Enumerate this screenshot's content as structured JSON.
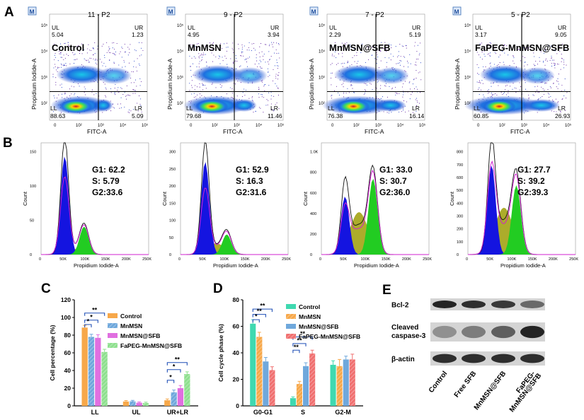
{
  "panel_letters": {
    "a": "A",
    "b": "B",
    "c": "C",
    "d": "D",
    "e": "E"
  },
  "flow_plots": [
    {
      "title": "11 - P2",
      "label": "Control",
      "ul": "5.04",
      "ur": "1.23",
      "ll": "88.63",
      "lr": "5.09"
    },
    {
      "title": "9 - P2",
      "label": "MnMSN",
      "ul": "4.95",
      "ur": "3.94",
      "ll": "79.68",
      "lr": "11.46"
    },
    {
      "title": "7 - P2",
      "label": "MnMSN@SFB",
      "ul": "2.29",
      "ur": "5.19",
      "ll": "76.38",
      "lr": "16.14"
    },
    {
      "title": "5 - P2",
      "label": "FaPEG-MnMSN@SFB",
      "ul": "3.17",
      "ur": "9.05",
      "ll": "60.85",
      "lr": "26.93"
    }
  ],
  "flow_axes": {
    "xlabel": "FITC-A",
    "ylabel": "Propidium Iodide-A",
    "m_badge": "M",
    "x_ticks": [
      "0",
      "10²",
      "10³",
      "10⁴",
      "10⁵"
    ],
    "y_ticks": [
      "10²",
      "10³",
      "10⁴",
      "10⁵"
    ]
  },
  "quadrant_names": {
    "ul": "UL",
    "ur": "UR",
    "ll": "LL",
    "lr": "LR"
  },
  "histograms": [
    {
      "g1": "G1: 62.2",
      "s": "S: 5.79",
      "g2": "G2:33.6",
      "y_ticks": [
        "0",
        "50",
        "100",
        "150"
      ]
    },
    {
      "g1": "G1: 52.9",
      "s": "S: 16.3",
      "g2": "G2:31.6",
      "y_ticks": [
        "0",
        "50",
        "100",
        "150",
        "200",
        "250",
        "300"
      ]
    },
    {
      "g1": "G1: 33.0",
      "s": "S: 30.7",
      "g2": "G2:36.0",
      "y_ticks": [
        "0",
        "200",
        "400",
        "600",
        "800",
        "1.0K"
      ]
    },
    {
      "g1": "G1: 27.7",
      "s": "S: 39.2",
      "g2": "G2:39.3",
      "y_ticks": [
        "0",
        "100",
        "200",
        "300",
        "400",
        "500",
        "600",
        "700",
        "800"
      ]
    }
  ],
  "hist_axes": {
    "xlabel": "Propidium Iodide-A",
    "ylabel": "Count",
    "x_ticks": [
      "0",
      "50K",
      "100K",
      "150K",
      "200K",
      "250K"
    ]
  },
  "chart_data": [
    {
      "type": "bar",
      "panel": "C",
      "ylabel": "Cell percentage (%)",
      "categories": [
        "LL",
        "UL",
        "UR+LR"
      ],
      "ylim": [
        0,
        120
      ],
      "yticks": [
        "0",
        "20",
        "40",
        "60",
        "80",
        "100",
        "120"
      ],
      "series": [
        {
          "name": "Control",
          "values": [
            88.6,
            5.0,
            6.3
          ],
          "errors": [
            2.5,
            1.0,
            1.5
          ],
          "color": "#f7a84a"
        },
        {
          "name": "MnMSN",
          "values": [
            78.0,
            5.2,
            15.4
          ],
          "errors": [
            3.0,
            1.0,
            2.5
          ],
          "color": "#6fa8dc"
        },
        {
          "name": "MnMSN@SFB",
          "values": [
            77.0,
            3.5,
            20.0
          ],
          "errors": [
            3.5,
            1.0,
            3.0
          ],
          "color": "#e06fe0"
        },
        {
          "name": "FaPEG-MnMSN@SFB",
          "values": [
            61.0,
            3.2,
            36.0
          ],
          "errors": [
            3.0,
            1.0,
            2.5
          ],
          "color": "#8fe08f"
        }
      ],
      "significance": [
        "**",
        "*",
        "*",
        "**",
        "*",
        "*"
      ]
    },
    {
      "type": "bar",
      "panel": "D",
      "ylabel": "Cell cycle phase (%)",
      "categories": [
        "G0-G1",
        "S",
        "G2-M"
      ],
      "ylim": [
        0,
        80
      ],
      "yticks": [
        "0",
        "20",
        "40",
        "60",
        "80"
      ],
      "series": [
        {
          "name": "Control",
          "values": [
            62.0,
            5.8,
            31.0
          ],
          "errors": [
            3.0,
            1.0,
            3.0
          ],
          "color": "#3fd9b0"
        },
        {
          "name": "MnMSN",
          "values": [
            52.0,
            16.5,
            30.0
          ],
          "errors": [
            3.5,
            2.0,
            5.0
          ],
          "color": "#f7a84a"
        },
        {
          "name": "MnMSN@SFB",
          "values": [
            33.5,
            30.0,
            35.0
          ],
          "errors": [
            3.0,
            2.5,
            2.5
          ],
          "color": "#6fa8dc"
        },
        {
          "name": "FaPEG-MnMSN@SFB",
          "values": [
            27.0,
            39.5,
            35.0
          ],
          "errors": [
            2.5,
            2.5,
            4.0
          ],
          "color": "#f07070"
        }
      ],
      "significance": [
        "**",
        "**",
        "*",
        "**",
        "**",
        "**"
      ]
    }
  ],
  "western": {
    "rows": [
      "Bcl-2",
      "Cleaved caspase-3",
      "β-actin"
    ],
    "row_line1": [
      "Bcl-2",
      "Cleaved",
      "β-actin"
    ],
    "row_line2": [
      "",
      "caspase-3",
      ""
    ],
    "lanes": [
      "Control",
      "Free SFB",
      "MnMSN@SFB",
      "FaPEG-MnMSN@SFB"
    ],
    "lane_line1": [
      "Control",
      "Free SFB",
      "MnMSN@SFB",
      "FaPEG-"
    ],
    "lane_line2": [
      "",
      "",
      "",
      "MnMSN@SFB"
    ]
  }
}
